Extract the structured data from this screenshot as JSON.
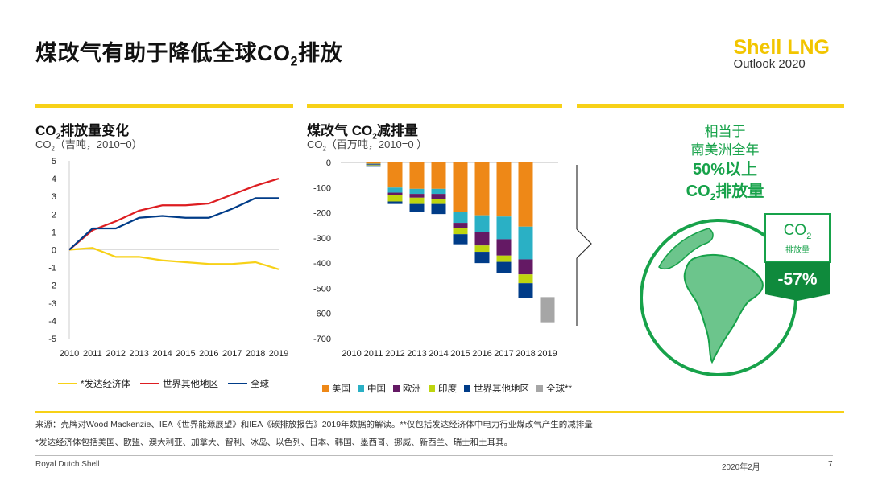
{
  "header": {
    "title_pre": "煤改气有助于降低全球CO",
    "title_sub": "2",
    "title_post": "排放",
    "brand_name": "Shell LNG",
    "brand_sub": "Outlook 2020"
  },
  "panel1": {
    "title_pre": "CO",
    "title_sub": "2",
    "title_post": "排放量变化",
    "subtitle_pre": "CO",
    "subtitle_sub": "2",
    "subtitle_post": "（吉吨，2010=0）"
  },
  "panel2": {
    "title_pre": "煤改气 CO",
    "title_sub": "2",
    "title_post": "减排量",
    "subtitle_pre": "CO",
    "subtitle_sub": "2",
    "subtitle_post": "（百万吨，2010=0 ）"
  },
  "panel3": {
    "line1": "相当于",
    "line2": "南美洲全年",
    "line3": "50%以上",
    "line4_pre": "CO",
    "line4_sub": "2",
    "line4_post": "排放量",
    "badge_co": "CO",
    "badge_sub": "2",
    "badge_label": "排放量",
    "badge_value": "-57%"
  },
  "chart_data": [
    {
      "type": "line",
      "title": "CO2排放量变化",
      "ylabel": "CO2（吉吨，2010=0）",
      "x": [
        "2010",
        "2011",
        "2012",
        "2013",
        "2014",
        "2015",
        "2016",
        "2017",
        "2018",
        "2019"
      ],
      "yticks": [
        "5",
        "4",
        "3",
        "2",
        "1",
        "0",
        "-1",
        "-2",
        "-3",
        "-4",
        "-5"
      ],
      "ylim": [
        -5,
        5
      ],
      "series": [
        {
          "name": "*发达经济体",
          "color": "#f7d117",
          "values": [
            0,
            0.1,
            -0.4,
            -0.4,
            -0.6,
            -0.7,
            -0.8,
            -0.8,
            -0.7,
            -1.1
          ]
        },
        {
          "name": "世界其他地区",
          "color": "#dd1d21",
          "values": [
            0,
            1.1,
            1.6,
            2.2,
            2.5,
            2.5,
            2.6,
            3.1,
            3.6,
            4.0
          ]
        },
        {
          "name": "全球",
          "color": "#003c88",
          "values": [
            0,
            1.2,
            1.2,
            1.8,
            1.9,
            1.8,
            1.8,
            2.3,
            2.9,
            2.9
          ]
        }
      ]
    },
    {
      "type": "bar",
      "stacked": true,
      "title": "煤改气 CO2减排量",
      "ylabel": "CO2（百万吨，2010=0）",
      "categories": [
        "2010",
        "2011",
        "2012",
        "2013",
        "2014",
        "2015",
        "2016",
        "2017",
        "2018",
        "2019"
      ],
      "yticks": [
        "0",
        "-100",
        "-200",
        "-300",
        "-400",
        "-500",
        "-600",
        "-700"
      ],
      "ylim": [
        -700,
        0
      ],
      "series": [
        {
          "name": "美国",
          "color": "#ee8817",
          "values": [
            0,
            -5,
            -100,
            -105,
            -105,
            -195,
            -210,
            -215,
            -255,
            0
          ]
        },
        {
          "name": "中国",
          "color": "#2ab0c5",
          "values": [
            0,
            -3,
            -20,
            -20,
            -20,
            -45,
            -65,
            -90,
            -130,
            0
          ]
        },
        {
          "name": "欧洲",
          "color": "#641964",
          "values": [
            0,
            -2,
            -10,
            -15,
            -20,
            -20,
            -55,
            -65,
            -60,
            0
          ]
        },
        {
          "name": "印度",
          "color": "#bed50f",
          "values": [
            0,
            -2,
            -25,
            -25,
            -20,
            -25,
            -25,
            -25,
            -35,
            0
          ]
        },
        {
          "name": "世界其他地区",
          "color": "#003c88",
          "values": [
            0,
            -5,
            -10,
            -30,
            -40,
            -40,
            -45,
            -45,
            -60,
            0
          ]
        },
        {
          "name": "全球**",
          "color": "#a6a6a6",
          "values": [
            0,
            0,
            0,
            0,
            0,
            0,
            0,
            0,
            0,
            -100
          ],
          "base": -535
        }
      ]
    }
  ],
  "footer": {
    "note1": "来源：壳牌对Wood Mackenzie、IEA《世界能源展望》和IEA《碳排放报告》2019年数据的解读。**仅包括发达经济体中电力行业煤改气产生的减排量",
    "note2": "*发达经济体包括美国、欧盟、澳大利亚、加拿大、智利、冰岛、以色列、日本、韩国、墨西哥、挪威、新西兰、瑞士和土耳其。",
    "company": "Royal Dutch Shell",
    "date": "2020年2月",
    "page": "7"
  }
}
